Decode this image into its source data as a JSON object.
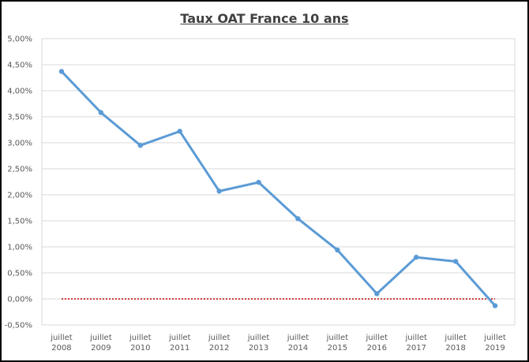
{
  "chart_data": {
    "type": "line",
    "title": "Taux OAT France 10 ans",
    "xlabel": "",
    "ylabel": "",
    "categories": [
      [
        "juillet",
        "2008"
      ],
      [
        "juillet",
        "2009"
      ],
      [
        "juillet",
        "2010"
      ],
      [
        "juillet",
        "2011"
      ],
      [
        "juillet",
        "2012"
      ],
      [
        "juillet",
        "2013"
      ],
      [
        "juillet",
        "2014"
      ],
      [
        "juillet",
        "2015"
      ],
      [
        "juillet",
        "2016"
      ],
      [
        "juillet",
        "2017"
      ],
      [
        "juillet",
        "2018"
      ],
      [
        "juillet",
        "2019"
      ]
    ],
    "series": [
      {
        "values": [
          4.37,
          3.58,
          2.95,
          3.22,
          2.07,
          2.24,
          1.54,
          0.94,
          0.1,
          0.8,
          0.72,
          -0.13
        ],
        "color": "#5b9bd5"
      }
    ],
    "zero_line": {
      "style": "dotted",
      "color": "#c00000"
    },
    "ylim": [
      -0.5,
      5.0
    ],
    "ytick_step": 0.5,
    "ytick_labels": [
      "-0,50%",
      "0,00%",
      "0,50%",
      "1,00%",
      "1,50%",
      "2,00%",
      "2,50%",
      "3,00%",
      "3,50%",
      "4,00%",
      "4,50%",
      "5,00%"
    ],
    "grid": true,
    "legend": "none"
  }
}
